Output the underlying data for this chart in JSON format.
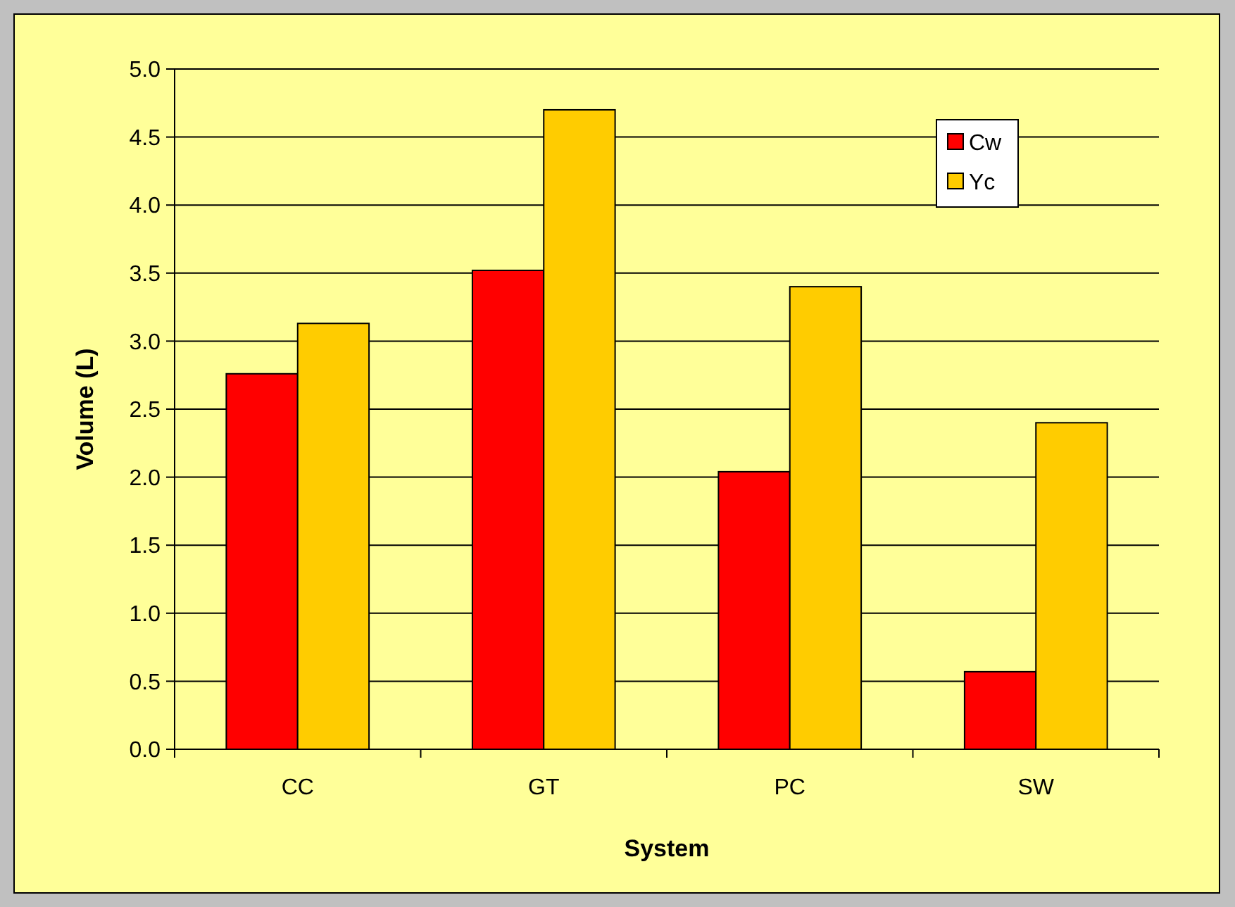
{
  "chart_data": {
    "type": "bar",
    "xlabel": "System",
    "ylabel": "Volume (L)",
    "categories": [
      "CC",
      "GT",
      "PC",
      "SW"
    ],
    "series": [
      {
        "name": "Cw",
        "color": "#ff0000",
        "values": [
          2.76,
          3.52,
          2.04,
          0.57
        ]
      },
      {
        "name": "Yc",
        "color": "#ffcc00",
        "values": [
          3.13,
          4.7,
          3.4,
          2.4
        ]
      }
    ],
    "ylim": [
      0,
      5
    ],
    "yticks": [
      {
        "value": 0,
        "label": "0.0"
      },
      {
        "value": 0.5,
        "label": "0.5"
      },
      {
        "value": 1,
        "label": "1.0"
      },
      {
        "value": 1.5,
        "label": "1.5"
      },
      {
        "value": 2,
        "label": "2.0"
      },
      {
        "value": 2.5,
        "label": "2.5"
      },
      {
        "value": 3,
        "label": "3.0"
      },
      {
        "value": 3.5,
        "label": "3.5"
      },
      {
        "value": 4,
        "label": "4.0"
      },
      {
        "value": 4.5,
        "label": "4.5"
      },
      {
        "value": 5,
        "label": "5.0"
      }
    ],
    "grid": "y",
    "legend": "top right"
  }
}
